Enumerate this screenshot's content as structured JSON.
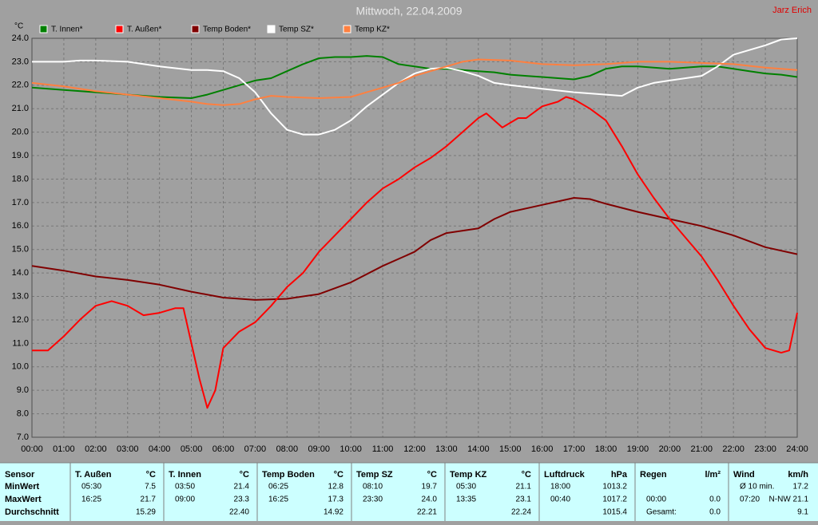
{
  "chart_data": {
    "type": "line",
    "title": "Mittwoch, 22.04.2009",
    "author": "Jarz Erich",
    "ylabel": "°C",
    "xlim": [
      0,
      24
    ],
    "xticks": [
      {
        "value": 0,
        "label": "00:00"
      },
      {
        "value": 1,
        "label": "01:00"
      },
      {
        "value": 2,
        "label": "02:00"
      },
      {
        "value": 3,
        "label": "03:00"
      },
      {
        "value": 4,
        "label": "04:00"
      },
      {
        "value": 5,
        "label": "05:00"
      },
      {
        "value": 6,
        "label": "06:00"
      },
      {
        "value": 7,
        "label": "07:00"
      },
      {
        "value": 8,
        "label": "08:00"
      },
      {
        "value": 9,
        "label": "09:00"
      },
      {
        "value": 10,
        "label": "10:00"
      },
      {
        "value": 11,
        "label": "11:00"
      },
      {
        "value": 12,
        "label": "12:00"
      },
      {
        "value": 13,
        "label": "13:00"
      },
      {
        "value": 14,
        "label": "14:00"
      },
      {
        "value": 15,
        "label": "15:00"
      },
      {
        "value": 16,
        "label": "16:00"
      },
      {
        "value": 17,
        "label": "17:00"
      },
      {
        "value": 18,
        "label": "18:00"
      },
      {
        "value": 19,
        "label": "19:00"
      },
      {
        "value": 20,
        "label": "20:00"
      },
      {
        "value": 21,
        "label": "21:00"
      },
      {
        "value": 22,
        "label": "22:00"
      },
      {
        "value": 23,
        "label": "23:00"
      },
      {
        "value": 24,
        "label": "24:00"
      }
    ],
    "ylim": [
      7,
      24
    ],
    "yticks": [
      {
        "value": 7,
        "label": "7.0"
      },
      {
        "value": 8,
        "label": "8.0"
      },
      {
        "value": 9,
        "label": "9.0"
      },
      {
        "value": 10,
        "label": "10.0"
      },
      {
        "value": 11,
        "label": "11.0"
      },
      {
        "value": 12,
        "label": "12.0"
      },
      {
        "value": 13,
        "label": "13.0"
      },
      {
        "value": 14,
        "label": "14.0"
      },
      {
        "value": 15,
        "label": "15.0"
      },
      {
        "value": 16,
        "label": "16.0"
      },
      {
        "value": 17,
        "label": "17.0"
      },
      {
        "value": 18,
        "label": "18.0"
      },
      {
        "value": 19,
        "label": "19.0"
      },
      {
        "value": 20,
        "label": "20.0"
      },
      {
        "value": 21,
        "label": "21.0"
      },
      {
        "value": 22,
        "label": "22.0"
      },
      {
        "value": 23,
        "label": "23.0"
      },
      {
        "value": 24,
        "label": "24.0"
      }
    ],
    "grid": true,
    "series": [
      {
        "name": "T. Innen*",
        "color": "#008000",
        "x": [
          0,
          1,
          2,
          3,
          4,
          5,
          5.5,
          6,
          6.5,
          7,
          7.5,
          8,
          8.5,
          9,
          9.5,
          10,
          10.5,
          11,
          11.5,
          12,
          12.5,
          13,
          13.5,
          14,
          14.5,
          15,
          15.5,
          16,
          16.5,
          17,
          17.5,
          18,
          18.5,
          19,
          19.5,
          20,
          20.5,
          21,
          21.5,
          22,
          22.5,
          23,
          23.5,
          24
        ],
        "values": [
          21.9,
          21.8,
          21.7,
          21.6,
          21.5,
          21.45,
          21.6,
          21.8,
          22.0,
          22.2,
          22.3,
          22.6,
          22.9,
          23.15,
          23.2,
          23.2,
          23.25,
          23.2,
          22.9,
          22.8,
          22.7,
          22.7,
          22.65,
          22.6,
          22.55,
          22.45,
          22.4,
          22.35,
          22.3,
          22.25,
          22.4,
          22.7,
          22.8,
          22.8,
          22.75,
          22.7,
          22.75,
          22.8,
          22.8,
          22.7,
          22.6,
          22.5,
          22.45,
          22.35
        ]
      },
      {
        "name": "T. Außen*",
        "color": "#ff0000",
        "x": [
          0,
          0.5,
          1,
          1.5,
          2,
          2.5,
          3,
          3.5,
          4,
          4.5,
          4.75,
          5,
          5.25,
          5.5,
          5.75,
          6,
          6.5,
          7,
          7.5,
          8,
          8.5,
          9,
          9.5,
          10,
          10.5,
          11,
          11.5,
          12,
          12.5,
          13,
          13.5,
          14,
          14.25,
          14.5,
          14.75,
          15,
          15.25,
          15.5,
          16,
          16.5,
          16.75,
          17,
          17.5,
          18,
          18.5,
          19,
          19.5,
          20,
          20.5,
          21,
          21.5,
          22,
          22.5,
          23,
          23.5,
          23.75,
          24
        ],
        "values": [
          10.7,
          10.7,
          11.3,
          12.0,
          12.6,
          12.8,
          12.6,
          12.2,
          12.3,
          12.5,
          12.5,
          11.0,
          9.5,
          8.25,
          9.0,
          10.8,
          11.5,
          11.9,
          12.6,
          13.4,
          14.0,
          14.9,
          15.6,
          16.3,
          17.0,
          17.6,
          18.0,
          18.5,
          18.9,
          19.4,
          20.0,
          20.6,
          20.8,
          20.5,
          20.2,
          20.4,
          20.6,
          20.6,
          21.1,
          21.3,
          21.5,
          21.4,
          21.0,
          20.5,
          19.4,
          18.2,
          17.2,
          16.3,
          15.5,
          14.7,
          13.7,
          12.6,
          11.6,
          10.8,
          10.6,
          10.7,
          12.3
        ]
      },
      {
        "name": "Temp Boden*",
        "color": "#800000",
        "x": [
          0,
          1,
          2,
          3,
          4,
          5,
          6,
          7,
          8,
          9,
          10,
          11,
          12,
          12.5,
          13,
          14,
          14.5,
          15,
          16,
          17,
          17.5,
          18,
          19,
          20,
          21,
          22,
          23,
          24
        ],
        "values": [
          14.3,
          14.1,
          13.85,
          13.7,
          13.5,
          13.2,
          12.95,
          12.85,
          12.9,
          13.1,
          13.6,
          14.3,
          14.9,
          15.4,
          15.7,
          15.9,
          16.3,
          16.6,
          16.9,
          17.2,
          17.15,
          16.95,
          16.6,
          16.3,
          16.0,
          15.6,
          15.1,
          14.8
        ]
      },
      {
        "name": "Temp SZ*",
        "color": "#ffffff",
        "x": [
          0,
          1,
          1.5,
          2,
          3,
          4,
          5,
          5.5,
          6,
          6.5,
          7,
          7.5,
          8,
          8.5,
          9,
          9.5,
          10,
          10.5,
          11,
          11.5,
          12,
          12.5,
          13,
          13.5,
          14,
          14.5,
          15,
          16,
          17,
          17.5,
          18,
          18.5,
          19,
          19.5,
          20,
          20.5,
          21,
          21.5,
          22,
          22.5,
          23,
          23.5,
          24
        ],
        "values": [
          23.0,
          23.0,
          23.05,
          23.05,
          23.0,
          22.8,
          22.65,
          22.65,
          22.6,
          22.3,
          21.7,
          20.8,
          20.1,
          19.9,
          19.9,
          20.1,
          20.5,
          21.1,
          21.6,
          22.1,
          22.5,
          22.7,
          22.75,
          22.6,
          22.4,
          22.1,
          22.0,
          21.85,
          21.7,
          21.65,
          21.6,
          21.55,
          21.9,
          22.1,
          22.2,
          22.3,
          22.4,
          22.8,
          23.3,
          23.5,
          23.7,
          23.95,
          24.0
        ]
      },
      {
        "name": "Temp KZ*",
        "color": "#ff8040",
        "x": [
          0,
          1,
          2,
          3,
          4,
          5,
          5.5,
          6,
          6.5,
          7,
          7.5,
          8,
          9,
          10,
          10.5,
          11,
          11.5,
          12,
          12.5,
          13,
          13.5,
          14,
          15,
          16,
          17,
          18,
          19,
          20,
          21,
          22,
          23,
          24
        ],
        "values": [
          22.1,
          21.95,
          21.75,
          21.6,
          21.45,
          21.3,
          21.2,
          21.15,
          21.2,
          21.4,
          21.55,
          21.5,
          21.45,
          21.5,
          21.7,
          21.9,
          22.1,
          22.4,
          22.6,
          22.8,
          23.0,
          23.1,
          23.05,
          22.9,
          22.85,
          22.9,
          23.0,
          23.0,
          22.95,
          22.9,
          22.75,
          22.65
        ]
      }
    ]
  },
  "stats": {
    "row_labels": [
      "Sensor",
      "MinWert",
      "MaxWert",
      "Durchschnitt"
    ],
    "groups": [
      {
        "name": "T. Außen",
        "unit": "°C",
        "rows": [
          [
            "05:30",
            "7.5"
          ],
          [
            "16:25",
            "21.7"
          ],
          [
            null,
            "15.29"
          ]
        ]
      },
      {
        "name": "T. Innen",
        "unit": "°C",
        "rows": [
          [
            "03:50",
            "21.4"
          ],
          [
            "09:00",
            "23.3"
          ],
          [
            null,
            "22.40"
          ]
        ]
      },
      {
        "name": "Temp Boden",
        "unit": "°C",
        "rows": [
          [
            "06:25",
            "12.8"
          ],
          [
            "16:25",
            "17.3"
          ],
          [
            null,
            "14.92"
          ]
        ]
      },
      {
        "name": "Temp SZ",
        "unit": "°C",
        "rows": [
          [
            "08:10",
            "19.7"
          ],
          [
            "23:30",
            "24.0"
          ],
          [
            null,
            "22.21"
          ]
        ]
      },
      {
        "name": "Temp KZ",
        "unit": "°C",
        "rows": [
          [
            "05:30",
            "21.1"
          ],
          [
            "13:35",
            "23.1"
          ],
          [
            null,
            "22.24"
          ]
        ]
      },
      {
        "name": "Luftdruck",
        "unit": "hPa",
        "rows": [
          [
            "18:00",
            "1013.2"
          ],
          [
            "00:40",
            "1017.2"
          ],
          [
            null,
            "1015.4"
          ]
        ]
      },
      {
        "name": "Regen",
        "unit": "l/m²",
        "rows": [
          null,
          [
            "00:00",
            "0.0"
          ],
          [
            "Gesamt:",
            "0.0"
          ]
        ]
      },
      {
        "name": "Wind",
        "unit": "km/h",
        "rows": [
          [
            "Ø 10 min.",
            "17.2"
          ],
          [
            "07:20",
            "N-NW 21.1"
          ],
          [
            null,
            "9.1"
          ]
        ]
      }
    ]
  }
}
